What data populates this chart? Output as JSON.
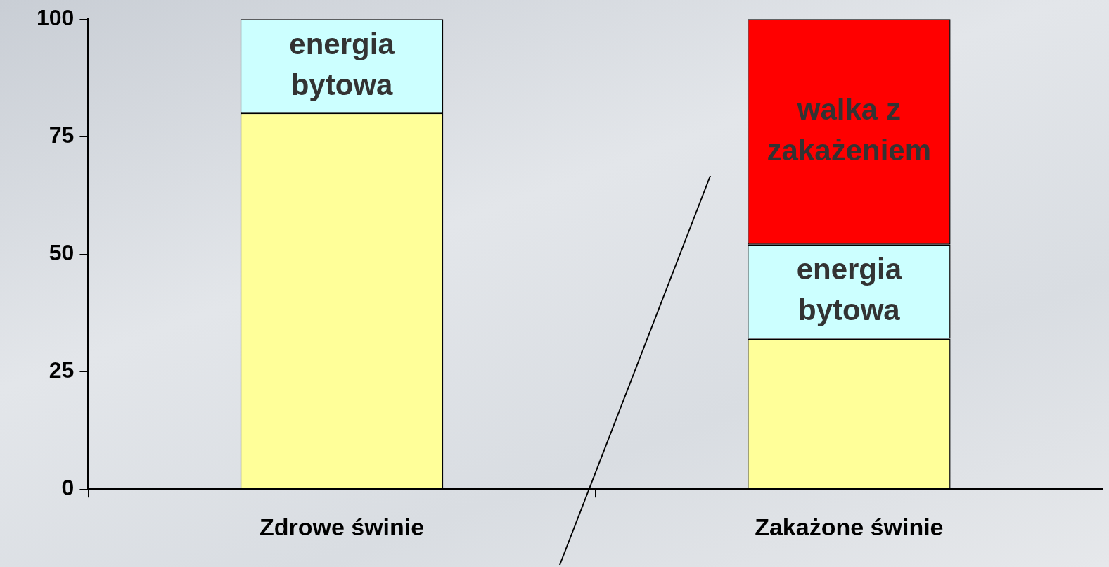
{
  "chart_data": {
    "type": "bar",
    "stacked": true,
    "categories": [
      "Zdrowe świnie",
      "Zakażone świnie"
    ],
    "ylim": [
      0,
      100
    ],
    "yticks": [
      0,
      25,
      50,
      75,
      100
    ],
    "series": [
      {
        "color": "#ffff99",
        "values": [
          80,
          32
        ]
      },
      {
        "name": "energia bytowa",
        "color": "#ccffff",
        "values": [
          20,
          20
        ]
      },
      {
        "name": "walka z zakażeniem",
        "color": "#ff0000",
        "values": [
          null,
          48
        ]
      }
    ]
  }
}
